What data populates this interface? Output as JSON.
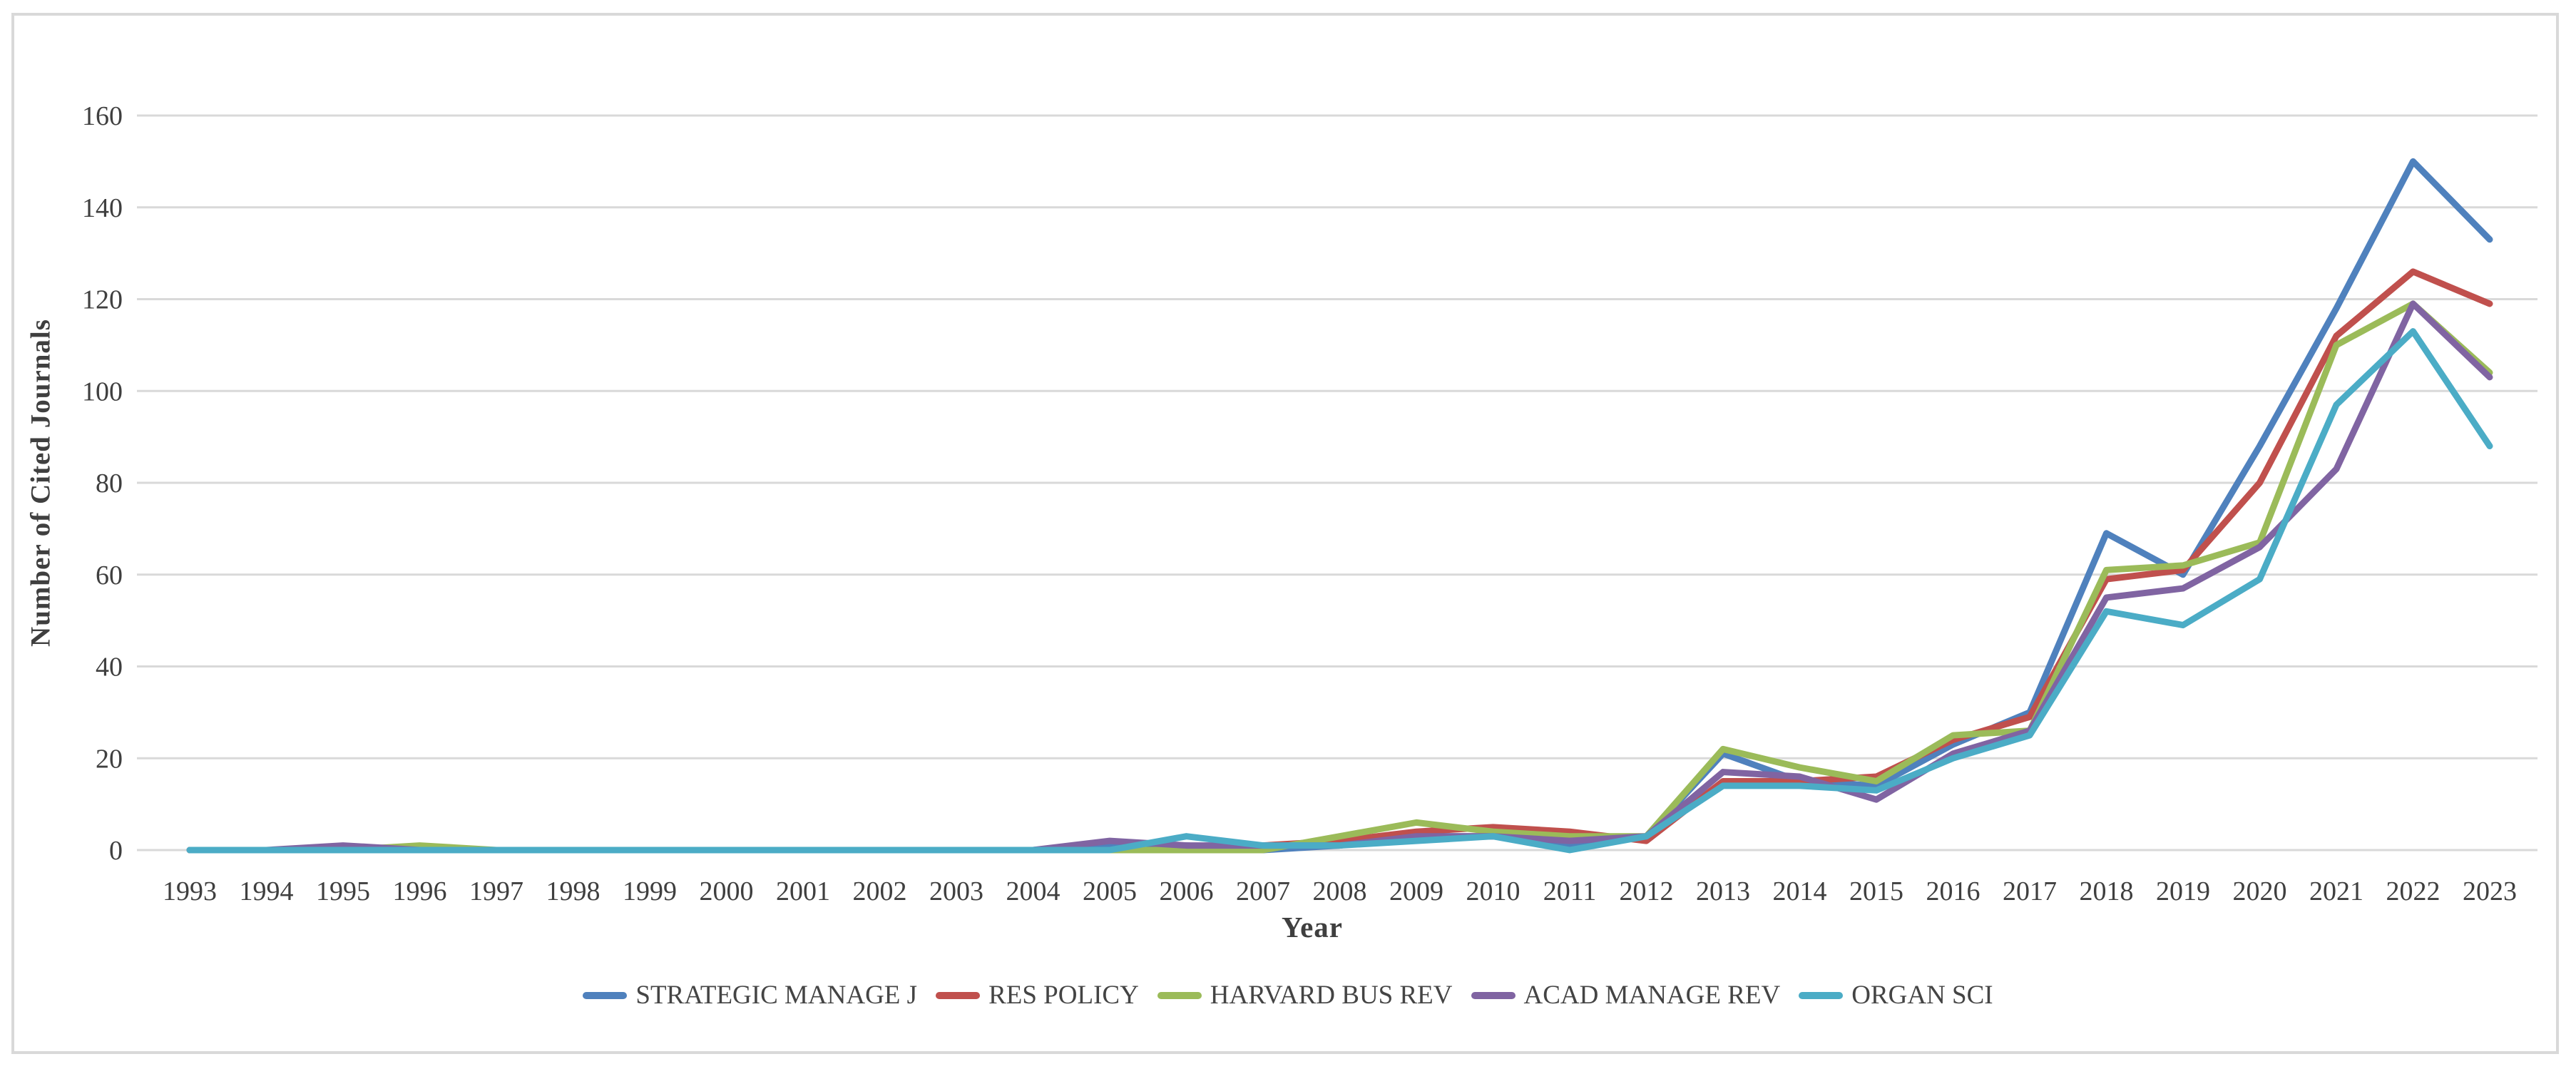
{
  "frame": {
    "background": "#ffffff",
    "border_color": "#d9d9d9"
  },
  "chart_data": {
    "type": "line",
    "title": "",
    "xlabel": "Year",
    "ylabel": "Number of Cited Journals",
    "categories": [
      "1993",
      "1994",
      "1995",
      "1996",
      "1997",
      "1998",
      "1999",
      "2000",
      "2001",
      "2002",
      "2003",
      "2004",
      "2005",
      "2006",
      "2007",
      "2008",
      "2009",
      "2010",
      "2011",
      "2012",
      "2013",
      "2014",
      "2015",
      "2016",
      "2017",
      "2018",
      "2019",
      "2020",
      "2021",
      "2022",
      "2023"
    ],
    "ylim": [
      0,
      160
    ],
    "ytick_step": 20,
    "yticks": [
      0,
      20,
      40,
      60,
      80,
      100,
      120,
      140,
      160
    ],
    "grid": "horizontal",
    "gridline_color": "#d9d9d9",
    "tick_label_color": "#3f3f3f",
    "legend_position": "bottom",
    "series": [
      {
        "name": "STRATEGIC MANAGE J",
        "color": "#4F81BD",
        "values": [
          0,
          0,
          0,
          0,
          0,
          0,
          0,
          0,
          0,
          0,
          0,
          0,
          1,
          1,
          0,
          1,
          3,
          3,
          1,
          3,
          21,
          15,
          14,
          23,
          30,
          69,
          60,
          88,
          118,
          150,
          133
        ]
      },
      {
        "name": "RES POLICY",
        "color": "#C0504D",
        "values": [
          0,
          0,
          0,
          0,
          0,
          0,
          0,
          0,
          0,
          0,
          0,
          0,
          0,
          0,
          1,
          2,
          4,
          5,
          4,
          2,
          15,
          15,
          16,
          24,
          29,
          59,
          61,
          80,
          112,
          126,
          119
        ]
      },
      {
        "name": "HARVARD BUS REV",
        "color": "#9BBB59",
        "values": [
          0,
          0,
          0,
          1,
          0,
          0,
          0,
          0,
          0,
          0,
          0,
          0,
          0,
          0,
          0,
          3,
          6,
          4,
          3,
          3,
          22,
          18,
          15,
          25,
          26,
          61,
          62,
          67,
          110,
          119,
          104
        ]
      },
      {
        "name": "ACAD MANAGE REV",
        "color": "#8064A2",
        "values": [
          0,
          0,
          1,
          0,
          0,
          0,
          0,
          0,
          0,
          0,
          0,
          0,
          2,
          1,
          1,
          1,
          3,
          3,
          2,
          3,
          17,
          16,
          11,
          21,
          26,
          55,
          57,
          66,
          83,
          119,
          103
        ]
      },
      {
        "name": "ORGAN SCI",
        "color": "#4BACC6",
        "values": [
          0,
          0,
          0,
          0,
          0,
          0,
          0,
          0,
          0,
          0,
          0,
          0,
          0,
          3,
          1,
          1,
          2,
          3,
          0,
          3,
          14,
          14,
          13,
          20,
          25,
          52,
          49,
          59,
          97,
          113,
          88
        ]
      }
    ]
  }
}
